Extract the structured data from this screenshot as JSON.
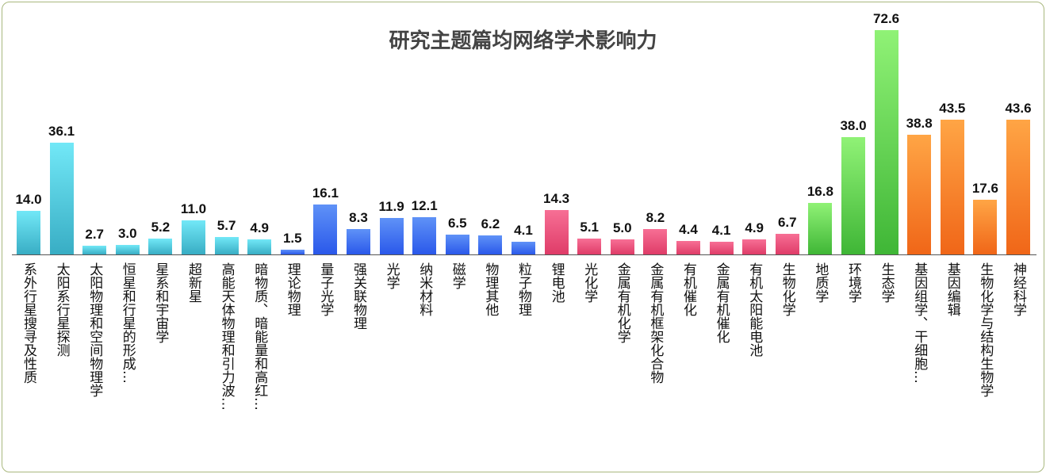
{
  "chart_data": {
    "type": "bar",
    "title": "研究主题篇均网络学术影响力",
    "xlabel": "",
    "ylabel": "",
    "ylim": [
      0,
      72.6
    ],
    "grid": false,
    "categories": [
      "系外行星搜寻及性质",
      "太阳系行星探测",
      "太阳物理和空间物理学",
      "恒星和行星的形成…",
      "星系和宇宙学",
      "超新星",
      "高能天体物理和引力波…",
      "暗物质、暗能量和高红…",
      "理论物理",
      "量子光学",
      "强关联物理",
      "光学",
      "纳米材料",
      "磁学",
      "物理其他",
      "粒子物理",
      "锂电池",
      "光化学",
      "金属有机化学",
      "金属有机框架化合物",
      "有机催化",
      "金属有机催化",
      "有机太阳能电池",
      "生物化学",
      "地质学",
      "环境学",
      "生态学",
      "基因组学、干细胞…",
      "基因编辑",
      "生物化学与结构生物学",
      "神经科学"
    ],
    "values": [
      14.0,
      36.1,
      2.7,
      3.0,
      5.2,
      11.0,
      5.7,
      4.9,
      1.5,
      16.1,
      8.3,
      11.9,
      12.1,
      6.5,
      6.2,
      4.1,
      14.3,
      5.1,
      5.0,
      8.2,
      4.4,
      4.1,
      4.9,
      6.7,
      16.8,
      38.0,
      72.6,
      38.8,
      43.5,
      17.6,
      43.6
    ],
    "labels": [
      "14.0",
      "36.1",
      "2.7",
      "3.0",
      "5.2",
      "11.0",
      "5.7",
      "4.9",
      "1.5",
      "16.1",
      "8.3",
      "11.9",
      "12.1",
      "6.5",
      "6.2",
      "4.1",
      "14.3",
      "5.1",
      "5.0",
      "8.2",
      "4.4",
      "4.1",
      "4.9",
      "6.7",
      "16.8",
      "38.0",
      "72.6",
      "38.8",
      "43.5",
      "17.6",
      "43.6"
    ],
    "groups": [
      0,
      0,
      0,
      0,
      0,
      0,
      0,
      0,
      1,
      1,
      1,
      1,
      1,
      1,
      1,
      1,
      2,
      2,
      2,
      2,
      2,
      2,
      2,
      2,
      3,
      3,
      3,
      4,
      4,
      4,
      4
    ],
    "group_colors": [
      [
        "#72e8f7",
        "#38adc4"
      ],
      [
        "#5f92f7",
        "#2a58ea"
      ],
      [
        "#f76f95",
        "#df3c68"
      ],
      [
        "#90f276",
        "#3fb636"
      ],
      [
        "#ffa545",
        "#f06618"
      ]
    ]
  }
}
